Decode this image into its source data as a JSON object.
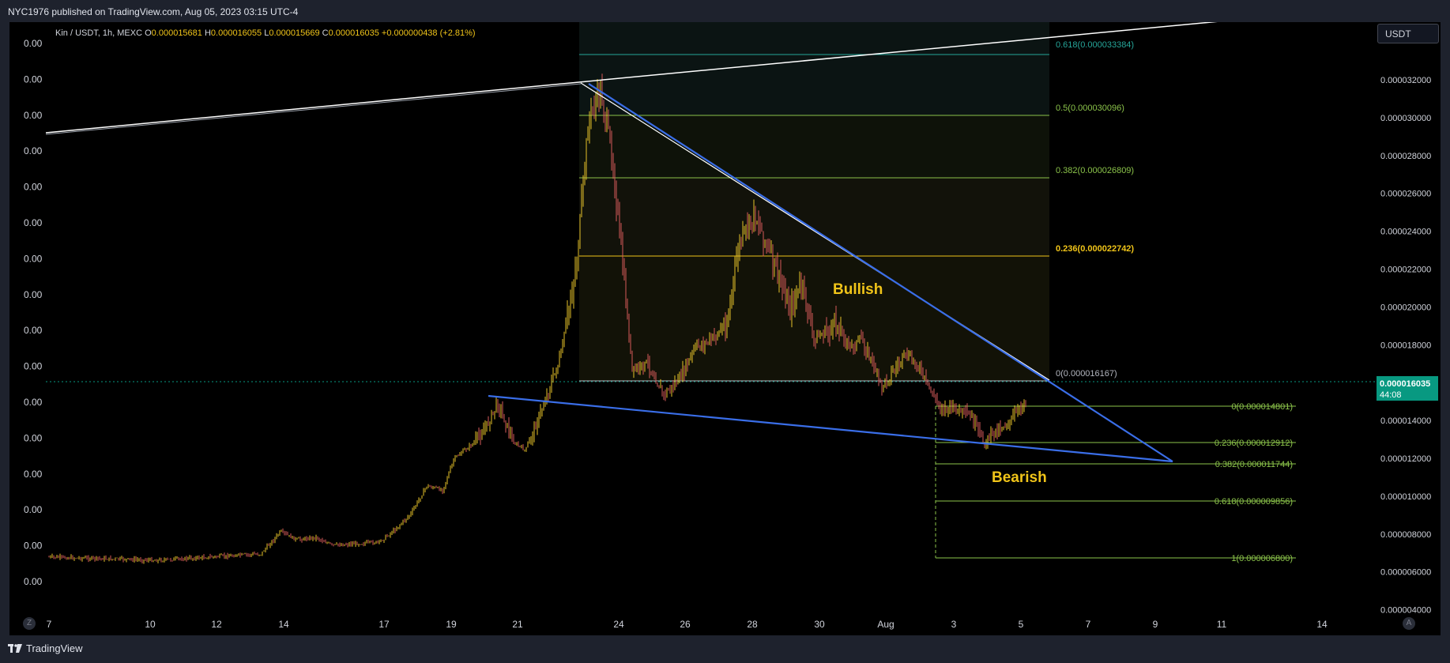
{
  "header": {
    "publish_text": "NYC1976 published on TradingView.com, Aug 05, 2023 03:15 UTC-4"
  },
  "symbol_info": {
    "name": "Kin / USDT, 1h, MEXC",
    "o_label": "O",
    "o_value": "0.000015681",
    "h_label": "H",
    "h_value": "0.000016055",
    "l_label": "L",
    "l_value": "0.000015669",
    "c_label": "C",
    "c_value": "0.000016035",
    "change": "+0.000000438 (+2.81%)"
  },
  "currency_button": "USDT",
  "left_axis_labels": [
    "0.00",
    "0.00",
    "0.00",
    "0.00",
    "0.00",
    "0.00",
    "0.00",
    "0.00",
    "0.00",
    "0.00",
    "0.00",
    "0.00",
    "0.00",
    "0.00",
    "0.00",
    "0.00"
  ],
  "right_axis_labels": [
    "0.000032000",
    "0.000030000",
    "0.000028000",
    "0.000026000",
    "0.000024000",
    "0.000022000",
    "0.000020000",
    "0.000018000",
    "0.000016000",
    "0.000014000",
    "0.000012000",
    "0.000010000",
    "0.000008000",
    "0.000006000",
    "0.000004000"
  ],
  "time_axis_labels": [
    "7",
    "10",
    "12",
    "14",
    "17",
    "19",
    "21",
    "24",
    "26",
    "28",
    "30",
    "Aug",
    "3",
    "5",
    "7",
    "9",
    "11",
    "14"
  ],
  "price_label": {
    "price": "0.000016035",
    "countdown": "44:08"
  },
  "fib_upper": [
    {
      "label": "0.618(0.000033384)",
      "color": "#26a69a"
    },
    {
      "label": "0.5(0.000030096)",
      "color": "#8bc34a"
    },
    {
      "label": "0.382(0.000026809)",
      "color": "#8bc34a"
    },
    {
      "label": "0.236(0.000022742)",
      "color": "#f0c419"
    },
    {
      "label": "0(0.000016167)",
      "color": "#b2b5be"
    }
  ],
  "fib_lower": [
    {
      "label": "0(0.000014801)",
      "color": "#8bc34a"
    },
    {
      "label": "0.236(0.000012912)",
      "color": "#8bc34a"
    },
    {
      "label": "0.382(0.000011744)",
      "color": "#8bc34a"
    },
    {
      "label": "0.618(0.000009856)",
      "color": "#8bc34a"
    },
    {
      "label": "1(0.000006800)",
      "color": "#8bc34a"
    }
  ],
  "annotations": {
    "bullish": "Bullish",
    "bearish": "Bearish"
  },
  "z_button": "Z",
  "a_button": "A",
  "footer": {
    "brand": "TradingView"
  },
  "colors": {
    "background": "#000000",
    "frame": "#1e222d",
    "accent_yellow": "#f0c419",
    "trendline_blue": "#3a6ee8",
    "price_tag": "#089981",
    "candle_up": "#e6c229",
    "candle_down": "#d65a5a"
  }
}
